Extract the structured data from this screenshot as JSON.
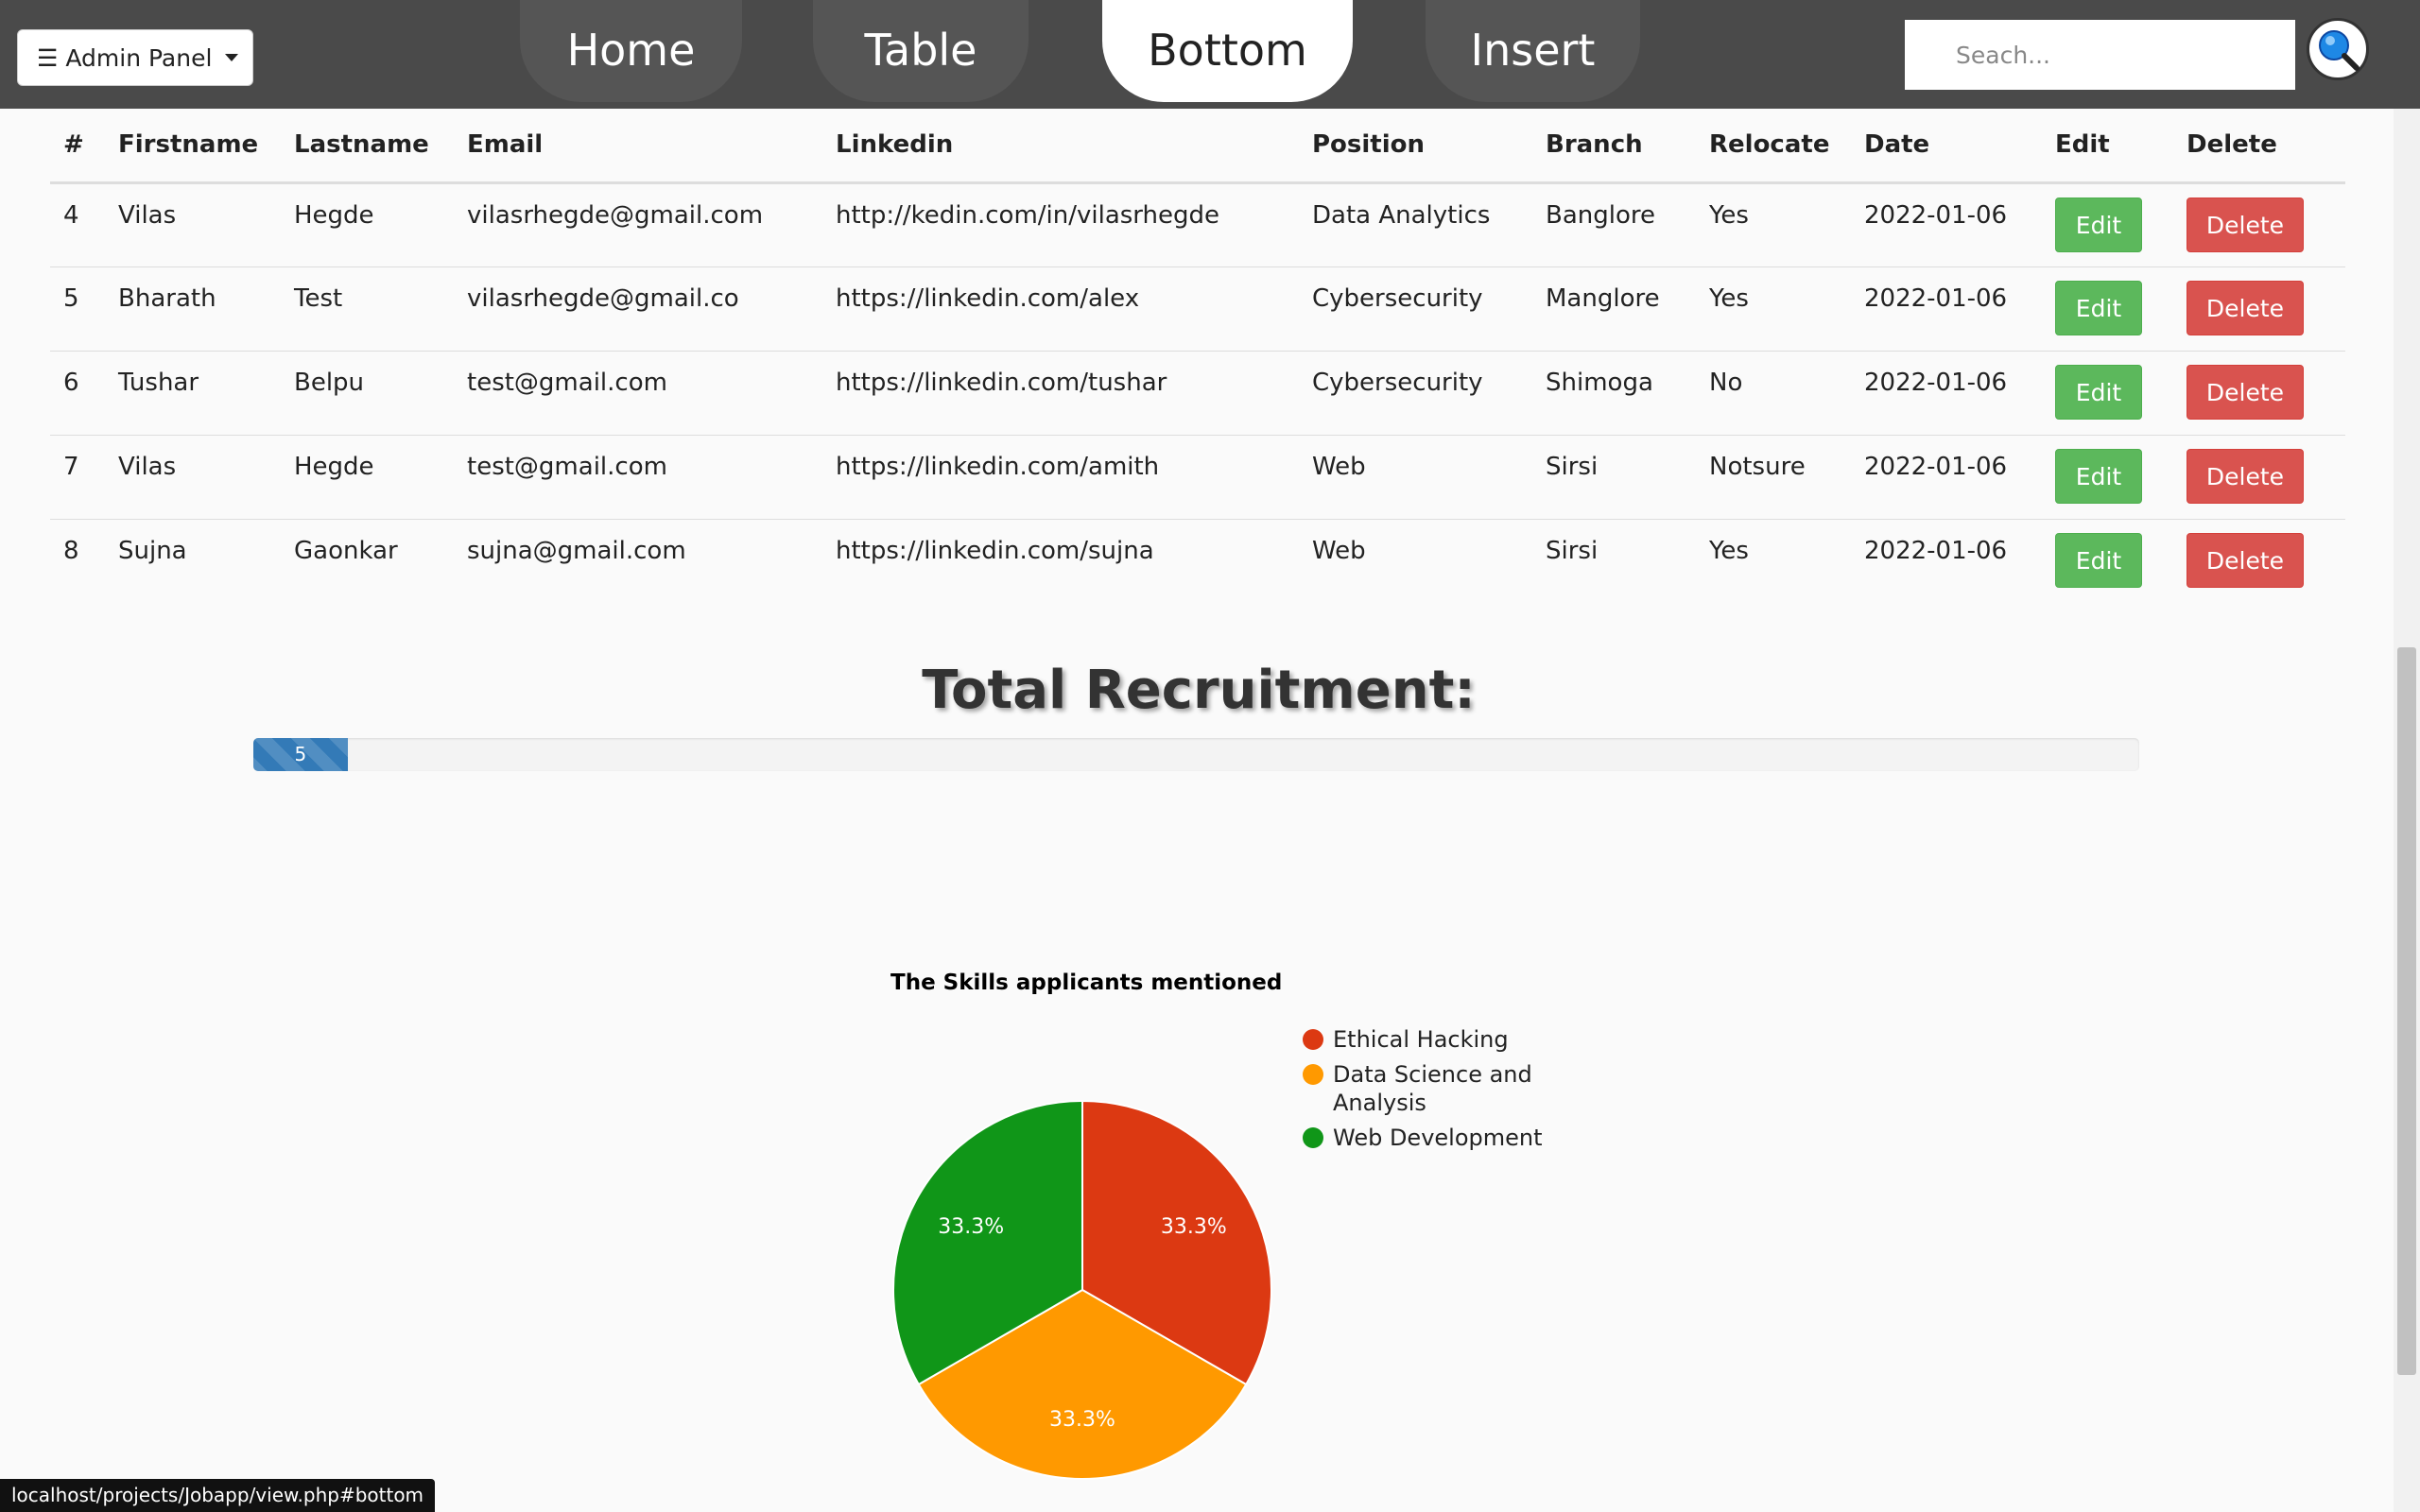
{
  "header": {
    "admin_label": "☰ Admin Panel",
    "tabs": [
      {
        "label": "Home",
        "active": false
      },
      {
        "label": "Table",
        "active": false
      },
      {
        "label": "Bottom",
        "active": true
      },
      {
        "label": "Insert",
        "active": false
      }
    ],
    "search_placeholder": "Seach..."
  },
  "table": {
    "columns": [
      "#",
      "Firstname",
      "Lastname",
      "Email",
      "Linkedin",
      "Position",
      "Branch",
      "Relocate",
      "Date",
      "Edit",
      "Delete"
    ],
    "rows": [
      {
        "id": "4",
        "firstname": "Vilas",
        "lastname": "Hegde",
        "email": "vilasrhegde@gmail.com",
        "linkedin": "http://kedin.com/in/vilasrhegde",
        "position": "Data Analytics",
        "branch": "Banglore",
        "relocate": "Yes",
        "date": "2022-01-06",
        "edit": "Edit",
        "delete": "Delete"
      },
      {
        "id": "5",
        "firstname": "Bharath",
        "lastname": "Test",
        "email": "vilasrhegde@gmail.co",
        "linkedin": "https://linkedin.com/alex",
        "position": "Cybersecurity",
        "branch": "Manglore",
        "relocate": "Yes",
        "date": "2022-01-06",
        "edit": "Edit",
        "delete": "Delete"
      },
      {
        "id": "6",
        "firstname": "Tushar",
        "lastname": "Belpu",
        "email": "test@gmail.com",
        "linkedin": "https://linkedin.com/tushar",
        "position": "Cybersecurity",
        "branch": "Shimoga",
        "relocate": "No",
        "date": "2022-01-06",
        "edit": "Edit",
        "delete": "Delete"
      },
      {
        "id": "7",
        "firstname": "Vilas",
        "lastname": "Hegde",
        "email": "test@gmail.com",
        "linkedin": "https://linkedin.com/amith",
        "position": "Web",
        "branch": "Sirsi",
        "relocate": "Notsure",
        "date": "2022-01-06",
        "edit": "Edit",
        "delete": "Delete"
      },
      {
        "id": "8",
        "firstname": "Sujna",
        "lastname": "Gaonkar",
        "email": "sujna@gmail.com",
        "linkedin": "https://linkedin.com/sujna",
        "position": "Web",
        "branch": "Sirsi",
        "relocate": "Yes",
        "date": "2022-01-06",
        "edit": "Edit",
        "delete": "Delete"
      }
    ]
  },
  "recruitment": {
    "title": "Total Recruitment:",
    "value_label": "5",
    "fill_fraction": 0.05
  },
  "chart_data": {
    "type": "pie",
    "title": "The Skills applicants mentioned",
    "legend_position": "right",
    "series": [
      {
        "name": "Ethical Hacking",
        "value": 33.3,
        "label": "33.3%",
        "color": "#dc3912"
      },
      {
        "name": "Data Science and Analysis",
        "value": 33.3,
        "label": "33.3%",
        "color": "#ff9900"
      },
      {
        "name": "Web Development",
        "value": 33.3,
        "label": "33.3%",
        "color": "#109618"
      }
    ]
  },
  "status_url": "localhost/projects/Jobapp/view.php#bottom",
  "icons": {
    "search": "search-icon",
    "caret": "caret-down-icon"
  }
}
